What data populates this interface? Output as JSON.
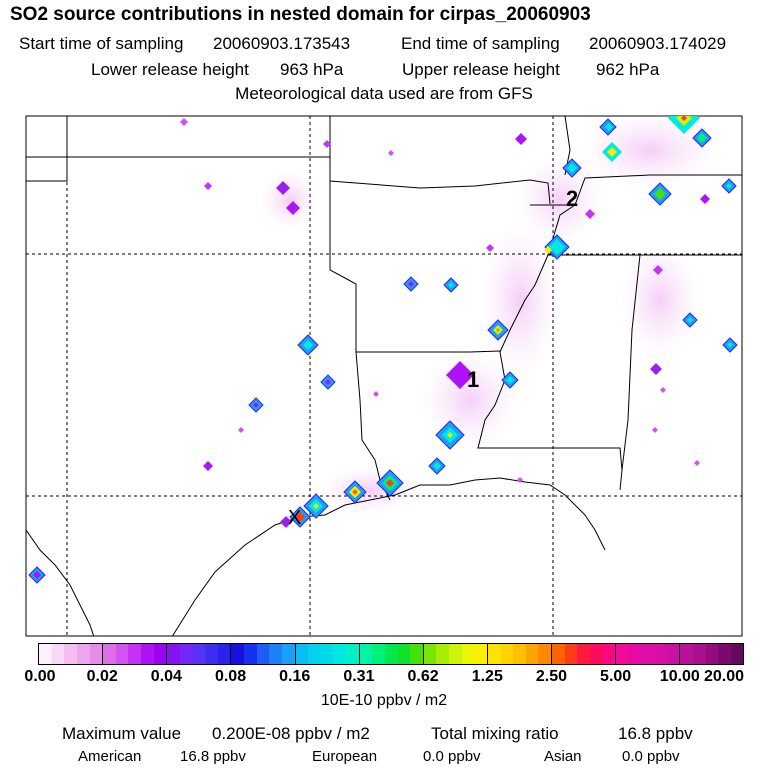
{
  "header": {
    "title": "SO2 source contributions in nested domain for cirpas_20060903",
    "start_label": "Start time of sampling",
    "start_value": "20060903.173543",
    "end_label": "End time of sampling",
    "end_value": "20060903.174029",
    "lower_label": "Lower release height",
    "lower_value": "963 hPa",
    "upper_label": "Upper release height",
    "upper_value": "962 hPa",
    "met_note": "Meteorological data used are from GFS"
  },
  "map": {
    "markers": [
      {
        "label": "1"
      },
      {
        "label": "2"
      }
    ],
    "release_site_symbol": "X"
  },
  "colorbar": {
    "ticks": [
      "0.00",
      "0.02",
      "0.04",
      "0.08",
      "0.16",
      "0.31",
      "0.62",
      "1.25",
      "2.50",
      "5.00",
      "10.00",
      "20.00"
    ],
    "unit": "10E-10 ppbv / m2",
    "colors": [
      "#fdf0fd",
      "#f8d8f8",
      "#f2bff2",
      "#eca6ee",
      "#e58ce8",
      "#dc6fe6",
      "#d453ef",
      "#c534f5",
      "#b012f7",
      "#9a05ef",
      "#8614f2",
      "#7328f5",
      "#5a32f3",
      "#3f2ef0",
      "#2a24ea",
      "#1612e2",
      "#1533ee",
      "#1f5df2",
      "#1e80f5",
      "#1aa0f6",
      "#0bbbf3",
      "#05d0ee",
      "#00dbe8",
      "#00e8e0",
      "#00f0c8",
      "#00f4a8",
      "#00f07a",
      "#00e84a",
      "#10e02a",
      "#44e00c",
      "#7ce404",
      "#a6ec04",
      "#cef20a",
      "#eaf604",
      "#f8f000",
      "#fde400",
      "#fed300",
      "#ffc000",
      "#ffa400",
      "#ff8a00",
      "#ff6400",
      "#ff3c18",
      "#ff1a3c",
      "#ff0a5e",
      "#fb0882",
      "#f20a98",
      "#e80aa6",
      "#de0ea8",
      "#d410a6",
      "#c812a2",
      "#b8129a",
      "#a8108e",
      "#940c80",
      "#7c0a6e",
      "#640a5c"
    ]
  },
  "summary": {
    "max_label": "Maximum value",
    "max_value": "0.200E-08 ppbv / m2",
    "total_label": "Total mixing ratio",
    "total_value": "16.8 ppbv",
    "sources": [
      {
        "name": "American",
        "value": "16.8 ppbv"
      },
      {
        "name": "European",
        "value": "0.0 ppbv"
      },
      {
        "name": "Asian",
        "value": "0.0 ppbv"
      }
    ]
  }
}
